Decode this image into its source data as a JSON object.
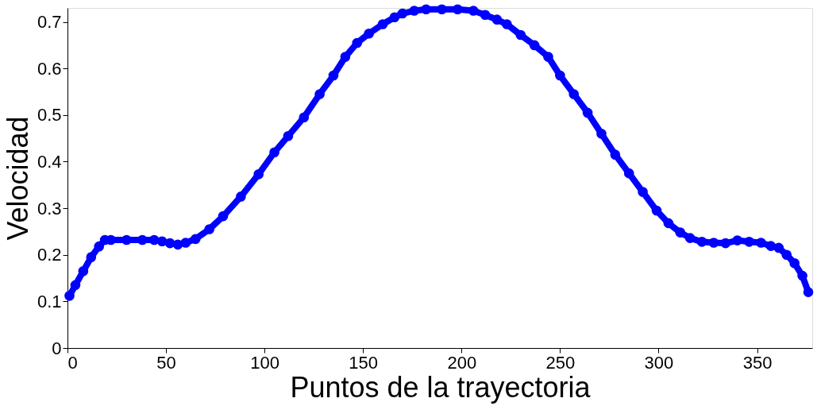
{
  "chart_data": {
    "type": "line",
    "xlabel": "Puntos de la trayectoria",
    "ylabel": "Velocidad",
    "x": [
      1,
      4,
      8,
      12,
      16,
      19,
      22,
      30,
      38,
      44,
      48,
      52,
      56,
      60,
      65,
      72,
      79,
      88,
      97,
      105,
      112,
      120,
      128,
      135,
      141,
      147,
      153,
      160,
      166,
      170,
      176,
      182,
      190,
      198,
      206,
      212,
      218,
      223,
      230,
      237,
      244,
      250,
      257,
      264,
      271,
      278,
      285,
      292,
      299,
      305,
      311,
      316,
      322,
      328,
      334,
      340,
      346,
      352,
      357,
      361,
      365,
      369,
      373,
      376
    ],
    "series": [
      {
        "color": "#0000ff",
        "values": [
          0.112,
          0.135,
          0.165,
          0.195,
          0.218,
          0.232,
          0.232,
          0.232,
          0.232,
          0.232,
          0.229,
          0.225,
          0.222,
          0.226,
          0.234,
          0.255,
          0.283,
          0.325,
          0.373,
          0.42,
          0.455,
          0.495,
          0.545,
          0.585,
          0.625,
          0.655,
          0.675,
          0.695,
          0.71,
          0.718,
          0.724,
          0.727,
          0.727,
          0.727,
          0.724,
          0.715,
          0.705,
          0.695,
          0.672,
          0.65,
          0.625,
          0.585,
          0.545,
          0.505,
          0.46,
          0.415,
          0.375,
          0.335,
          0.295,
          0.268,
          0.248,
          0.236,
          0.228,
          0.226,
          0.225,
          0.231,
          0.228,
          0.226,
          0.219,
          0.215,
          0.2,
          0.182,
          0.155,
          0.12
        ]
      }
    ],
    "xlim": [
      0,
      378
    ],
    "ylim": [
      0,
      0.73
    ],
    "xticks": [
      0,
      50,
      100,
      150,
      200,
      250,
      300,
      350
    ],
    "yticks": [
      0,
      0.1,
      0.2,
      0.3,
      0.4,
      0.5,
      0.6,
      0.7
    ],
    "grid": false,
    "marker": "circle",
    "line_style": "solid"
  }
}
